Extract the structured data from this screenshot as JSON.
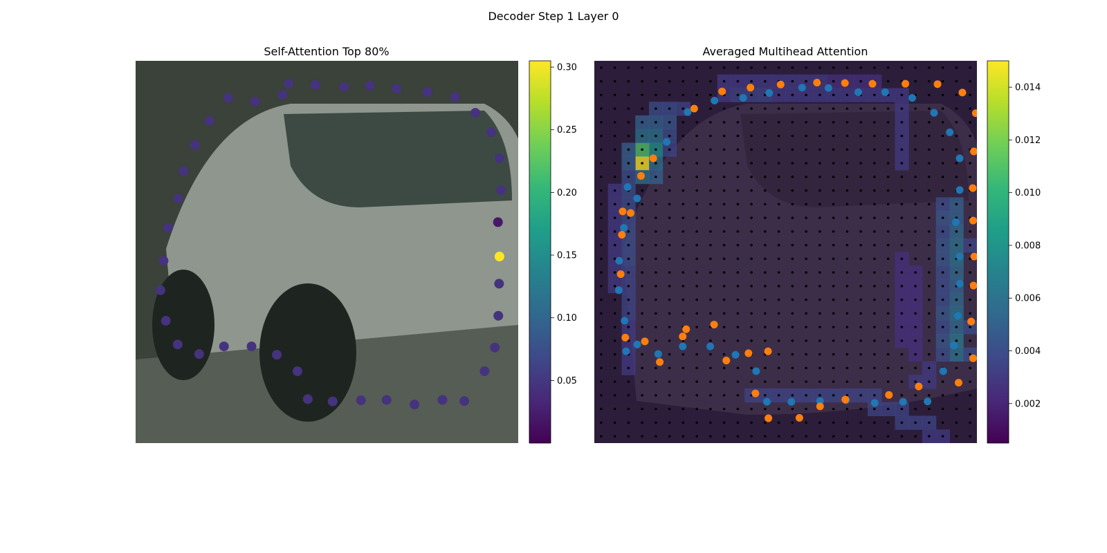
{
  "figure": {
    "suptitle": "Decoder Step 1 Layer 0"
  },
  "colors": {
    "viridis": [
      "#440154",
      "#482878",
      "#3e4989",
      "#31688e",
      "#26828e",
      "#1f9e89",
      "#35b779",
      "#6ece58",
      "#b5de2b",
      "#fde725"
    ],
    "blue_points": "#1f77b4",
    "orange_points": "#ff7f0e",
    "grid_dots": "#000000",
    "left_background": "#3a4239",
    "right_background": "#2c1e3a"
  },
  "chart_data": [
    {
      "type": "scatter",
      "title": "Self-Attention Top 80%",
      "xlim": [
        0,
        1
      ],
      "ylim": [
        0,
        1
      ],
      "axes_visible": false,
      "background": "photo of a silver car (not reproduced)",
      "colorbar": {
        "min": 0.0,
        "max": 0.305,
        "ticks": [
          0.05,
          0.1,
          0.15,
          0.2,
          0.25,
          0.3
        ],
        "tick_labels": [
          "0.05",
          "0.10",
          "0.15",
          "0.20",
          "0.25",
          "0.30"
        ]
      },
      "points": [
        [
          0.47,
          0.937,
          0.045
        ],
        [
          0.545,
          0.932,
          0.045
        ],
        [
          0.612,
          0.935,
          0.045
        ],
        [
          0.682,
          0.927,
          0.045
        ],
        [
          0.762,
          0.918,
          0.045
        ],
        [
          0.835,
          0.905,
          0.045
        ],
        [
          0.888,
          0.864,
          0.045
        ],
        [
          0.929,
          0.813,
          0.045
        ],
        [
          0.951,
          0.745,
          0.045
        ],
        [
          0.955,
          0.662,
          0.045
        ],
        [
          0.947,
          0.578,
          0.02
        ],
        [
          0.951,
          0.488,
          0.305
        ],
        [
          0.95,
          0.417,
          0.045
        ],
        [
          0.948,
          0.333,
          0.045
        ],
        [
          0.939,
          0.25,
          0.045
        ],
        [
          0.912,
          0.188,
          0.045
        ],
        [
          0.859,
          0.11,
          0.045
        ],
        [
          0.802,
          0.113,
          0.045
        ],
        [
          0.729,
          0.101,
          0.045
        ],
        [
          0.656,
          0.113,
          0.045
        ],
        [
          0.589,
          0.112,
          0.045
        ],
        [
          0.515,
          0.109,
          0.045
        ],
        [
          0.45,
          0.115,
          0.045
        ],
        [
          0.423,
          0.188,
          0.045
        ],
        [
          0.369,
          0.231,
          0.045
        ],
        [
          0.303,
          0.253,
          0.045
        ],
        [
          0.231,
          0.253,
          0.045
        ],
        [
          0.166,
          0.233,
          0.045
        ],
        [
          0.11,
          0.258,
          0.045
        ],
        [
          0.079,
          0.32,
          0.045
        ],
        [
          0.065,
          0.4,
          0.045
        ],
        [
          0.073,
          0.477,
          0.045
        ],
        [
          0.085,
          0.563,
          0.045
        ],
        [
          0.111,
          0.64,
          0.045
        ],
        [
          0.125,
          0.712,
          0.045
        ],
        [
          0.155,
          0.78,
          0.045
        ],
        [
          0.193,
          0.843,
          0.045
        ],
        [
          0.242,
          0.903,
          0.045
        ],
        [
          0.312,
          0.893,
          0.045
        ],
        [
          0.384,
          0.911,
          0.045
        ],
        [
          0.4,
          0.94,
          0.045
        ]
      ]
    },
    {
      "type": "heatmap",
      "title": "Averaged Multihead Attention",
      "xlim": [
        0,
        1
      ],
      "ylim": [
        0,
        1
      ],
      "axes_visible": false,
      "grid": {
        "rows": 28,
        "cols": 28
      },
      "colorbar": {
        "min": 0.0005,
        "max": 0.015,
        "ticks": [
          0.002,
          0.004,
          0.006,
          0.008,
          0.01,
          0.012,
          0.014
        ],
        "tick_labels": [
          "0.002",
          "0.004",
          "0.006",
          "0.008",
          "0.010",
          "0.012",
          "0.014"
        ]
      },
      "hot_cells": [
        [
          7,
          3,
          0.015
        ],
        [
          6,
          3,
          0.011
        ],
        [
          5,
          3,
          0.006
        ],
        [
          6,
          4,
          0.008
        ],
        [
          5,
          4,
          0.006
        ],
        [
          4,
          4,
          0.005
        ],
        [
          7,
          4,
          0.006
        ],
        [
          8,
          4,
          0.005
        ],
        [
          8,
          3,
          0.006
        ],
        [
          6,
          2,
          0.005
        ],
        [
          7,
          2,
          0.005
        ],
        [
          8,
          2,
          0.004
        ],
        [
          9,
          2,
          0.004
        ],
        [
          10,
          2,
          0.004
        ],
        [
          11,
          2,
          0.004
        ],
        [
          12,
          2,
          0.004
        ],
        [
          13,
          2,
          0.004
        ],
        [
          14,
          2,
          0.004
        ],
        [
          15,
          2,
          0.0035
        ],
        [
          16,
          2,
          0.0035
        ],
        [
          17,
          2,
          0.0035
        ],
        [
          18,
          2,
          0.0035
        ],
        [
          19,
          2,
          0.003
        ],
        [
          20,
          2,
          0.003
        ],
        [
          21,
          2,
          0.003
        ],
        [
          22,
          2,
          0.003
        ],
        [
          9,
          1,
          0.003
        ],
        [
          10,
          1,
          0.003
        ],
        [
          11,
          1,
          0.003
        ],
        [
          12,
          1,
          0.003
        ],
        [
          13,
          1,
          0.003
        ],
        [
          14,
          1,
          0.003
        ],
        [
          15,
          1,
          0.003
        ],
        [
          16,
          1,
          0.003
        ],
        [
          4,
          5,
          0.0045
        ],
        [
          5,
          5,
          0.004
        ],
        [
          3,
          5,
          0.004
        ],
        [
          3,
          6,
          0.0035
        ],
        [
          6,
          5,
          0.0035
        ],
        [
          3,
          4,
          0.004
        ],
        [
          4,
          3,
          0.005
        ],
        [
          10,
          26,
          0.005
        ],
        [
          11,
          26,
          0.005
        ],
        [
          12,
          26,
          0.0055
        ],
        [
          13,
          26,
          0.006
        ],
        [
          14,
          26,
          0.006
        ],
        [
          15,
          26,
          0.0055
        ],
        [
          16,
          26,
          0.005
        ],
        [
          17,
          26,
          0.0055
        ],
        [
          18,
          26,
          0.006
        ],
        [
          19,
          26,
          0.0055
        ],
        [
          20,
          26,
          0.0065
        ],
        [
          21,
          26,
          0.006
        ],
        [
          10,
          25,
          0.004
        ],
        [
          11,
          25,
          0.0045
        ],
        [
          12,
          25,
          0.004
        ],
        [
          13,
          25,
          0.0045
        ],
        [
          14,
          25,
          0.0045
        ],
        [
          15,
          25,
          0.004
        ],
        [
          16,
          25,
          0.004
        ],
        [
          17,
          25,
          0.004
        ],
        [
          18,
          25,
          0.0045
        ],
        [
          19,
          25,
          0.004
        ],
        [
          20,
          25,
          0.0045
        ],
        [
          21,
          25,
          0.004
        ],
        [
          21,
          27,
          0.004
        ],
        [
          19,
          27,
          0.004
        ],
        [
          13,
          27,
          0.0035
        ],
        [
          24,
          11,
          0.0035
        ],
        [
          24,
          12,
          0.0035
        ],
        [
          24,
          13,
          0.0035
        ],
        [
          24,
          14,
          0.0035
        ],
        [
          24,
          15,
          0.0035
        ],
        [
          24,
          16,
          0.0035
        ],
        [
          24,
          17,
          0.0035
        ],
        [
          24,
          18,
          0.0035
        ],
        [
          24,
          19,
          0.0035
        ],
        [
          24,
          20,
          0.0035
        ],
        [
          25,
          20,
          0.0035
        ],
        [
          25,
          21,
          0.0035
        ],
        [
          25,
          22,
          0.0035
        ],
        [
          26,
          22,
          0.0035
        ],
        [
          26,
          23,
          0.0035
        ],
        [
          26,
          24,
          0.0035
        ],
        [
          27,
          24,
          0.003
        ],
        [
          27,
          25,
          0.003
        ],
        [
          22,
          24,
          0.003
        ],
        [
          23,
          24,
          0.003
        ],
        [
          23,
          23,
          0.003
        ],
        [
          15,
          23,
          0.0025
        ],
        [
          16,
          23,
          0.0025
        ],
        [
          17,
          23,
          0.0025
        ],
        [
          18,
          23,
          0.0025
        ],
        [
          19,
          23,
          0.0025
        ],
        [
          20,
          23,
          0.0025
        ],
        [
          21,
          23,
          0.0025
        ],
        [
          14,
          22,
          0.0025
        ],
        [
          15,
          22,
          0.0025
        ],
        [
          16,
          22,
          0.0025
        ],
        [
          17,
          22,
          0.0025
        ],
        [
          18,
          22,
          0.0025
        ],
        [
          19,
          22,
          0.0025
        ],
        [
          20,
          22,
          0.0025
        ],
        [
          1,
          9,
          0.003
        ],
        [
          1,
          10,
          0.003
        ],
        [
          1,
          11,
          0.003
        ],
        [
          1,
          12,
          0.003
        ],
        [
          1,
          13,
          0.003
        ],
        [
          1,
          14,
          0.003
        ],
        [
          1,
          15,
          0.003
        ],
        [
          1,
          16,
          0.003
        ],
        [
          2,
          9,
          0.003
        ],
        [
          2,
          10,
          0.0035
        ],
        [
          2,
          11,
          0.0035
        ],
        [
          2,
          12,
          0.0035
        ],
        [
          2,
          13,
          0.003
        ],
        [
          2,
          14,
          0.003
        ],
        [
          2,
          15,
          0.003
        ],
        [
          2,
          16,
          0.003
        ],
        [
          2,
          17,
          0.003
        ],
        [
          2,
          18,
          0.003
        ],
        [
          2,
          19,
          0.003
        ],
        [
          2,
          20,
          0.003
        ],
        [
          2,
          21,
          0.003
        ],
        [
          2,
          22,
          0.003
        ],
        [
          3,
          22,
          0.003
        ],
        [
          4,
          22,
          0.003
        ],
        [
          5,
          22,
          0.003
        ],
        [
          6,
          22,
          0.003
        ],
        [
          7,
          22,
          0.003
        ],
        [
          1,
          17,
          0.0025
        ],
        [
          1,
          18,
          0.0025
        ],
        [
          1,
          19,
          0.0025
        ],
        [
          1,
          20,
          0.0025
        ]
      ],
      "series": [
        {
          "color": "blue",
          "points": [
            [
              0.244,
              0.866
            ],
            [
              0.314,
              0.896
            ],
            [
              0.389,
              0.903
            ],
            [
              0.457,
              0.916
            ],
            [
              0.543,
              0.93
            ],
            [
              0.612,
              0.929
            ],
            [
              0.69,
              0.918
            ],
            [
              0.76,
              0.918
            ],
            [
              0.831,
              0.903
            ],
            [
              0.888,
              0.864
            ],
            [
              0.929,
              0.813
            ],
            [
              0.955,
              0.745
            ],
            [
              0.955,
              0.662
            ],
            [
              0.945,
              0.578
            ],
            [
              0.955,
              0.488
            ],
            [
              0.955,
              0.417
            ],
            [
              0.95,
              0.333
            ],
            [
              0.94,
              0.255
            ],
            [
              0.912,
              0.188
            ],
            [
              0.871,
              0.109
            ],
            [
              0.807,
              0.108
            ],
            [
              0.733,
              0.105
            ],
            [
              0.658,
              0.112
            ],
            [
              0.59,
              0.11
            ],
            [
              0.515,
              0.108
            ],
            [
              0.451,
              0.108
            ],
            [
              0.423,
              0.188
            ],
            [
              0.369,
              0.231
            ],
            [
              0.303,
              0.253
            ],
            [
              0.231,
              0.253
            ],
            [
              0.167,
              0.233
            ],
            [
              0.112,
              0.258
            ],
            [
              0.079,
              0.32
            ],
            [
              0.064,
              0.4
            ],
            [
              0.065,
              0.477
            ],
            [
              0.077,
              0.563
            ],
            [
              0.112,
              0.64
            ],
            [
              0.189,
              0.788
            ],
            [
              0.087,
              0.67
            ],
            [
              0.083,
              0.24
            ]
          ]
        },
        {
          "color": "orange",
          "points": [
            [
              0.261,
              0.875
            ],
            [
              0.334,
              0.92
            ],
            [
              0.408,
              0.93
            ],
            [
              0.487,
              0.938
            ],
            [
              0.582,
              0.943
            ],
            [
              0.655,
              0.942
            ],
            [
              0.727,
              0.94
            ],
            [
              0.813,
              0.94
            ],
            [
              0.897,
              0.939
            ],
            [
              0.962,
              0.917
            ],
            [
              0.997,
              0.863
            ],
            [
              0.992,
              0.763
            ],
            [
              0.989,
              0.667
            ],
            [
              0.99,
              0.582
            ],
            [
              0.993,
              0.488
            ],
            [
              0.991,
              0.412
            ],
            [
              0.985,
              0.318
            ],
            [
              0.99,
              0.222
            ],
            [
              0.952,
              0.158
            ],
            [
              0.848,
              0.148
            ],
            [
              0.77,
              0.126
            ],
            [
              0.656,
              0.114
            ],
            [
              0.59,
              0.096
            ],
            [
              0.536,
              0.066
            ],
            [
              0.455,
              0.065
            ],
            [
              0.421,
              0.13
            ],
            [
              0.454,
              0.24
            ],
            [
              0.313,
              0.31
            ],
            [
              0.231,
              0.279
            ],
            [
              0.171,
              0.212
            ],
            [
              0.081,
              0.276
            ],
            [
              0.069,
              0.442
            ],
            [
              0.072,
              0.545
            ],
            [
              0.074,
              0.606
            ],
            [
              0.095,
              0.602
            ],
            [
              0.154,
              0.745
            ],
            [
              0.122,
              0.699
            ],
            [
              0.24,
              0.298
            ],
            [
              0.132,
              0.266
            ],
            [
              0.345,
              0.216
            ],
            [
              0.403,
              0.235
            ]
          ]
        }
      ]
    }
  ]
}
